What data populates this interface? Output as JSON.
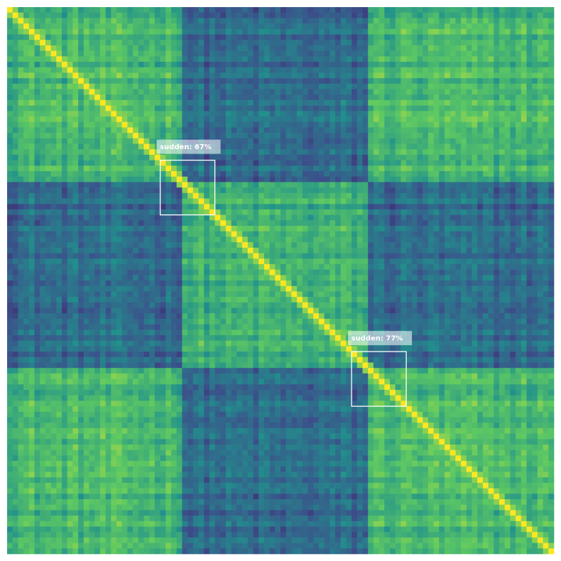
{
  "chart_data": {
    "type": "heatmap",
    "title": "",
    "xlabel": "",
    "ylabel": "",
    "colormap": "viridis",
    "matrix_size": 100,
    "block_boundaries": [
      0,
      32,
      66,
      100
    ],
    "block_means": [
      [
        0.66,
        0.34,
        0.66
      ],
      [
        0.34,
        0.62,
        0.34
      ],
      [
        0.66,
        0.34,
        0.66
      ]
    ],
    "diagonal_value": 1.0,
    "detections": [
      {
        "label": "sudden: 67%",
        "class": "sudden",
        "score": 0.67,
        "start_index": 28,
        "end_index": 38
      },
      {
        "label": "sudden: 77%",
        "class": "sudden",
        "score": 0.77,
        "start_index": 63,
        "end_index": 73
      }
    ],
    "annotation_colors": {
      "box": "#ffffff",
      "label_bg": "#ffffff",
      "label_text": "#ffffff"
    }
  }
}
